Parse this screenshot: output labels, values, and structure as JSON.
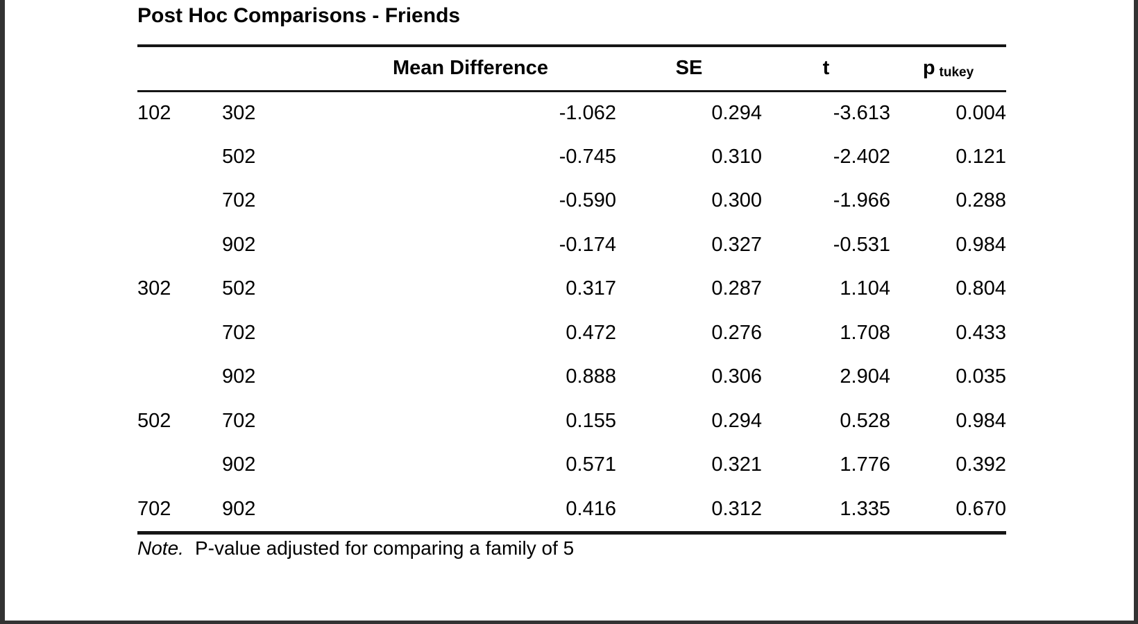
{
  "page": {
    "title": "Post Hoc Comparisons - Friends"
  },
  "table": {
    "headers": {
      "group_a": "",
      "group_b": "",
      "mean_difference": "Mean Difference",
      "se": "SE",
      "t": "t",
      "p": "p",
      "p_sub": "tukey"
    },
    "rows": [
      {
        "a": "102",
        "b": "302",
        "md": "-1.062",
        "se": "0.294",
        "t": "-3.613",
        "p": "0.004"
      },
      {
        "a": "",
        "b": "502",
        "md": "-0.745",
        "se": "0.310",
        "t": "-2.402",
        "p": "0.121"
      },
      {
        "a": "",
        "b": "702",
        "md": "-0.590",
        "se": "0.300",
        "t": "-1.966",
        "p": "0.288"
      },
      {
        "a": "",
        "b": "902",
        "md": "-0.174",
        "se": "0.327",
        "t": "-0.531",
        "p": "0.984"
      },
      {
        "a": "302",
        "b": "502",
        "md": "0.317",
        "se": "0.287",
        "t": "1.104",
        "p": "0.804"
      },
      {
        "a": "",
        "b": "702",
        "md": "0.472",
        "se": "0.276",
        "t": "1.708",
        "p": "0.433"
      },
      {
        "a": "",
        "b": "902",
        "md": "0.888",
        "se": "0.306",
        "t": "2.904",
        "p": "0.035"
      },
      {
        "a": "502",
        "b": "702",
        "md": "0.155",
        "se": "0.294",
        "t": "0.528",
        "p": "0.984"
      },
      {
        "a": "",
        "b": "902",
        "md": "0.571",
        "se": "0.321",
        "t": "1.776",
        "p": "0.392"
      },
      {
        "a": "702",
        "b": "902",
        "md": "0.416",
        "se": "0.312",
        "t": "1.335",
        "p": "0.670"
      }
    ],
    "note_label": "Note.",
    "note_text": "P-value adjusted for comparing a family of 5"
  }
}
